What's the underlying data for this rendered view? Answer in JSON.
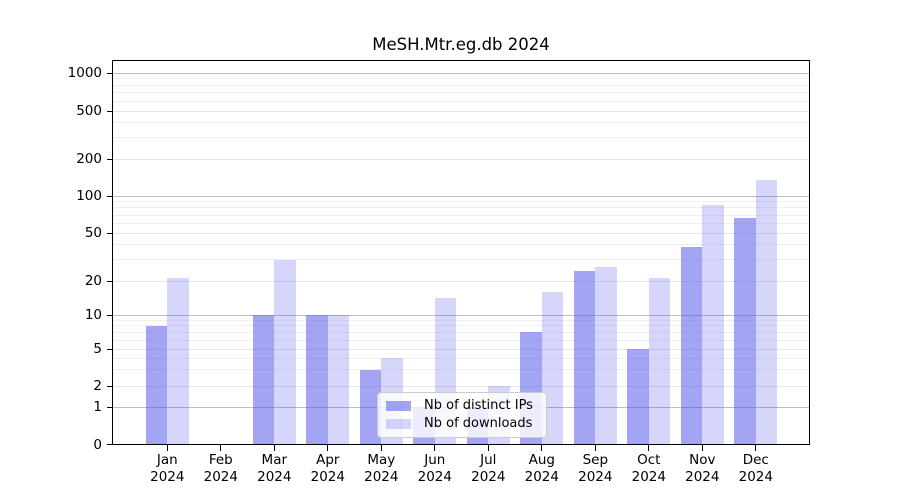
{
  "title": "MeSH.Mtr.eg.db 2024",
  "legend": {
    "items": [
      {
        "label": "Nb of distinct IPs"
      },
      {
        "label": "Nb of downloads"
      }
    ]
  },
  "colors": {
    "bar_ips": "rgba(90,90,235,0.55)",
    "bar_downloads": "rgba(90,90,235,0.25)",
    "grid_major": "#bdbdbd",
    "grid_minor": "#efefef"
  },
  "chart_data": {
    "type": "bar",
    "title": "MeSH.Mtr.eg.db 2024",
    "categories": [
      "Jan 2024",
      "Feb 2024",
      "Mar 2024",
      "Apr 2024",
      "May 2024",
      "Jun 2024",
      "Jul 2024",
      "Aug 2024",
      "Sep 2024",
      "Oct 2024",
      "Nov 2024",
      "Dec 2024"
    ],
    "months": [
      "Jan",
      "Feb",
      "Mar",
      "Apr",
      "May",
      "Jun",
      "Jul",
      "Aug",
      "Sep",
      "Oct",
      "Nov",
      "Dec"
    ],
    "year": "2024",
    "series": [
      {
        "name": "Nb of distinct IPs",
        "values": [
          8,
          0,
          10,
          10,
          3,
          1,
          1,
          7,
          24,
          5,
          38,
          66
        ]
      },
      {
        "name": "Nb of downloads",
        "values": [
          21,
          0,
          30,
          10,
          4,
          14,
          2,
          16,
          26,
          21,
          85,
          135
        ]
      }
    ],
    "xlabel": "",
    "ylabel": "",
    "yscale": "symlog-like",
    "y_ticks": [
      0,
      1,
      2,
      5,
      10,
      20,
      50,
      100,
      200,
      500,
      1000
    ],
    "ylim": [
      0,
      1300
    ],
    "grid": true,
    "legend_position": "lower center"
  }
}
